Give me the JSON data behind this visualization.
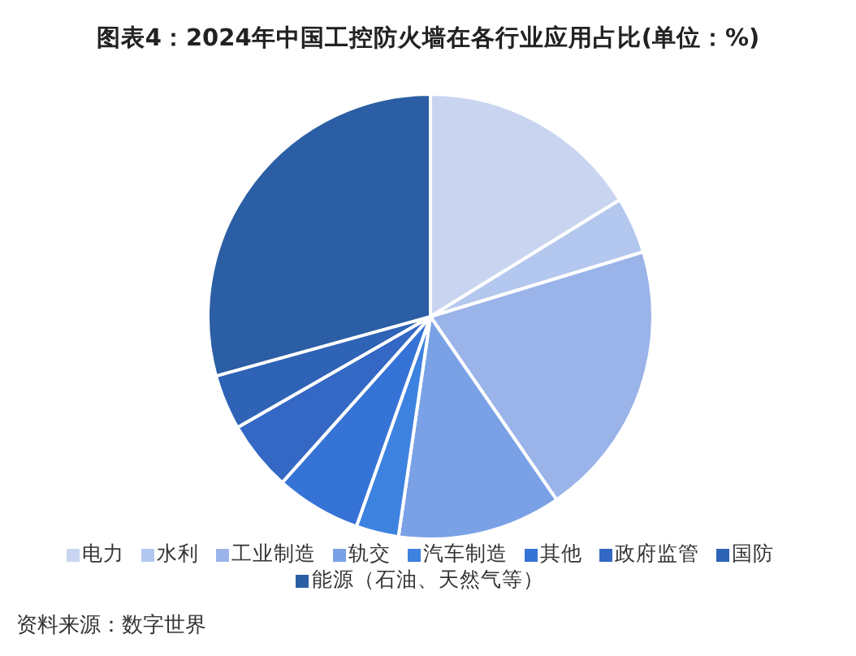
{
  "chart_data": {
    "type": "pie",
    "title": "图表4：2024年中国工控防火墙在各行业应用占比(单位：%)",
    "categories": [
      "电力",
      "水利",
      "工业制造",
      "轨交",
      "汽车制造",
      "其他",
      "政府监管",
      "国防",
      "能源（石油、天然气等）"
    ],
    "values": [
      16.2,
      4.1,
      20.1,
      11.9,
      3.1,
      6.2,
      5.1,
      4.0,
      29.3
    ],
    "colors": [
      "#c9d5f0",
      "#b4c7ee",
      "#9ab4ea",
      "#7aa1e6",
      "#3e82e0",
      "#3673d6",
      "#3468c4",
      "#2e63b6",
      "#2b5ea4"
    ],
    "legend": "bottom",
    "annotations": [
      "资料来源：数字世界"
    ]
  }
}
